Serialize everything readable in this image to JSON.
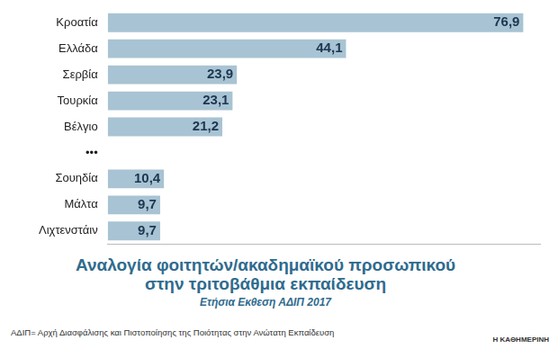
{
  "chart_data": {
    "type": "bar",
    "orientation": "horizontal",
    "title": "Αναλογία φοιτητών/ακαδημαϊκού προσωπικού στην τριτοβάθμια εκπαίδευση",
    "subtitle": "Ετήσια Εκθεση ΑΔΙΠ 2017",
    "categories": [
      "Κροατία",
      "Ελλάδα",
      "Σερβία",
      "Τουρκία",
      "Βέλγιο",
      "•••",
      "Σουηδία",
      "Μάλτα",
      "Λιχτενστάιν"
    ],
    "values": [
      76.9,
      44.1,
      23.9,
      23.1,
      21.2,
      null,
      10.4,
      9.7,
      9.7
    ],
    "value_labels": [
      "76,9",
      "44,1",
      "23,9",
      "23,1",
      "21,2",
      null,
      "10,4",
      "9,7",
      "9,7"
    ],
    "color": "#a8c3d3",
    "xlim": [
      0,
      80
    ],
    "data_labels": true,
    "tick_labels": "y",
    "grid": false,
    "annotations": [
      "ΑΔΙΠ= Αρχή Διασφάλισης και Πιστοποίησης της Ποιότητας στην Ανώτατη Εκπαίδευση",
      "Η ΚΑΘΗΜΕΡΙΝΗ"
    ]
  }
}
